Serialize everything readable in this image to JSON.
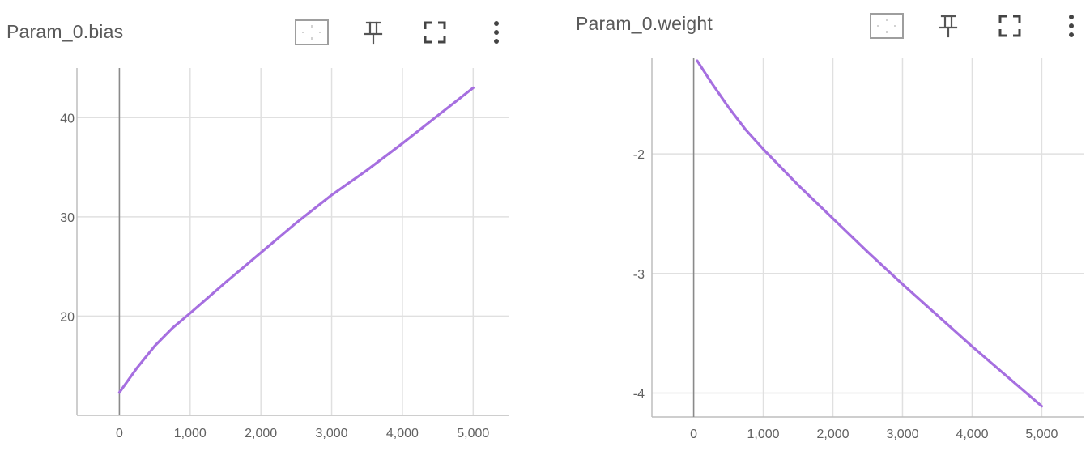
{
  "cards": [
    {
      "title": "Param_0.bias",
      "toolbar": {
        "icons": [
          "fit-domain-icon",
          "pin-icon",
          "fullscreen-icon",
          "more-vert-icon"
        ]
      }
    },
    {
      "title": "Param_0.weight",
      "toolbar": {
        "icons": [
          "fit-domain-icon",
          "pin-icon",
          "fullscreen-icon",
          "more-vert-icon"
        ]
      }
    }
  ],
  "chart_data": [
    {
      "type": "line",
      "title": "Param_0.bias",
      "xlabel": "",
      "ylabel": "",
      "xlim": [
        -600,
        5500
      ],
      "ylim": [
        10,
        45
      ],
      "xticks": [
        0,
        1000,
        2000,
        3000,
        4000,
        5000
      ],
      "xtick_labels": [
        "0",
        "1,000",
        "2,000",
        "3,000",
        "4,000",
        "5,000"
      ],
      "yticks": [
        20,
        30,
        40
      ],
      "ytick_labels": [
        "20",
        "30",
        "40"
      ],
      "grid": true,
      "series": [
        {
          "color": "#a66fe0",
          "x": [
            0,
            250,
            500,
            750,
            1000,
            1500,
            2000,
            2500,
            3000,
            3500,
            4000,
            4500,
            5000
          ],
          "y": [
            12.3,
            14.8,
            17.0,
            18.8,
            20.3,
            23.4,
            26.4,
            29.4,
            32.2,
            34.7,
            37.4,
            40.2,
            43.0
          ]
        }
      ]
    },
    {
      "type": "line",
      "title": "Param_0.weight",
      "xlabel": "",
      "ylabel": "",
      "xlim": [
        -600,
        5600
      ],
      "ylim": [
        -4.2,
        -1.2
      ],
      "xticks": [
        0,
        1000,
        2000,
        3000,
        4000,
        5000
      ],
      "xtick_labels": [
        "0",
        "1,000",
        "2,000",
        "3,000",
        "4,000",
        "5,000"
      ],
      "yticks": [
        -4,
        -3,
        -2
      ],
      "ytick_labels": [
        "-4",
        "-3",
        "-2"
      ],
      "grid": true,
      "series": [
        {
          "color": "#a66fe0",
          "x": [
            50,
            250,
            500,
            750,
            1000,
            1500,
            2000,
            2500,
            3000,
            3500,
            4000,
            4500,
            5000
          ],
          "y": [
            -1.22,
            -1.4,
            -1.61,
            -1.8,
            -1.96,
            -2.26,
            -2.54,
            -2.82,
            -3.09,
            -3.35,
            -3.61,
            -3.86,
            -4.11
          ]
        }
      ]
    }
  ]
}
